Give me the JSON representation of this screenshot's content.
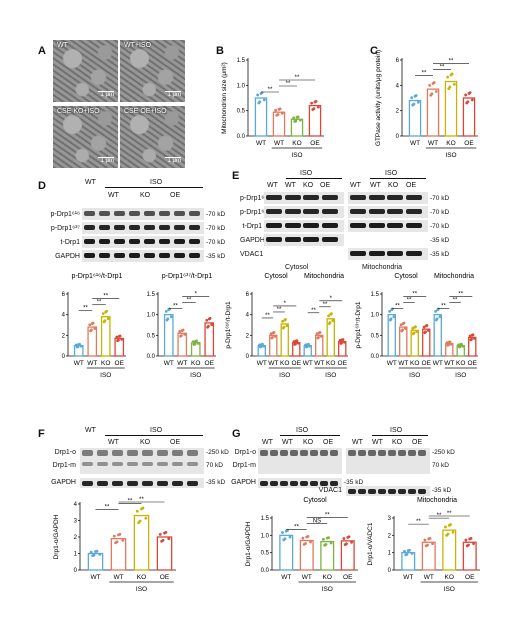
{
  "panel_letters": {
    "A": "A",
    "B": "B",
    "C": "C",
    "D": "D",
    "E": "E",
    "F": "F",
    "G": "G"
  },
  "panel_a": {
    "images": [
      {
        "label": "WT",
        "scale": "1 μm"
      },
      {
        "label": "WT+ISO",
        "scale": "1 μm"
      },
      {
        "label": "CSE KO+ISO",
        "scale": "1 μm"
      },
      {
        "label": "CSE OE+ISO",
        "scale": "1 μm"
      }
    ]
  },
  "common": {
    "wt": "WT",
    "ko": "KO",
    "oe": "OE",
    "iso": "ISO",
    "sig1": "*",
    "sig2": "**",
    "ns": "NS",
    "cytosol": "Cytosol",
    "mitochondria": "Mitochondria"
  },
  "markers": {
    "p_drp1_616": "p-Drp1⁶¹⁶",
    "p_drp1_637": "p-Drp1⁶³⁷",
    "t_drp1": "t-Drp1",
    "gapdh": "GAPDH",
    "vdac1": "VDAC1",
    "drp1_o": "Drp1-o",
    "drp1_m": "Drp1-m",
    "kd70": "-70 kD",
    "kd35": "-35 kD",
    "kd250": "-250 kD",
    "kd70b": "70 kD"
  },
  "chart_data": [
    {
      "id": "B",
      "type": "bar",
      "ylabel": "Mitochondrion size (μm²)",
      "ylim": [
        0,
        1.5
      ],
      "yticks": [
        "0.0",
        "0.5",
        "1.0",
        "1.5"
      ],
      "categories": [
        "WT",
        "WT",
        "KO",
        "OE"
      ],
      "values": [
        0.75,
        0.47,
        0.33,
        0.6
      ],
      "colors": [
        "#5aa9d6",
        "#e07a5f",
        "#7cb342",
        "#d9473a"
      ]
    },
    {
      "id": "C",
      "type": "bar",
      "ylabel": "GTPase activity (units/μg protein)",
      "ylim": [
        0,
        6
      ],
      "yticks": [
        "0",
        "2",
        "4",
        "6"
      ],
      "categories": [
        "WT",
        "WT",
        "KO",
        "OE"
      ],
      "values": [
        2.8,
        3.7,
        4.3,
        3.0
      ],
      "colors": [
        "#5aa9d6",
        "#e07a5f",
        "#c8b400",
        "#d9473a"
      ]
    },
    {
      "id": "D1",
      "type": "bar",
      "title": "p-Drp1⁶¹⁶/t-Drp1",
      "ylim": [
        0,
        6
      ],
      "yticks": [
        "0",
        "2",
        "4",
        "6"
      ],
      "categories": [
        "WT",
        "WT",
        "KO",
        "OE"
      ],
      "values": [
        1.0,
        2.8,
        3.8,
        1.7
      ],
      "colors": [
        "#5aa9d6",
        "#e07a5f",
        "#c8b400",
        "#d9473a"
      ]
    },
    {
      "id": "D2",
      "type": "bar",
      "title": "p-Drp1⁶³⁷/t-Drp1",
      "ylim": [
        0,
        1.5
      ],
      "yticks": [
        "0.0",
        "0.5",
        "1.0",
        "1.5"
      ],
      "categories": [
        "WT",
        "WT",
        "KO",
        "OE"
      ],
      "values": [
        1.0,
        0.55,
        0.32,
        0.8
      ],
      "colors": [
        "#5aa9d6",
        "#e07a5f",
        "#7cb342",
        "#d9473a"
      ]
    },
    {
      "id": "E1",
      "type": "bar",
      "ylabel": "p-Drp1⁶¹⁶/t-Drp1",
      "ylim": [
        0,
        6
      ],
      "yticks": [
        "0",
        "2",
        "4",
        "6"
      ],
      "groups": [
        "Cytosol",
        "Mitochondria"
      ],
      "categories": [
        "WT",
        "WT",
        "KO",
        "OE",
        "WT",
        "WT",
        "KO",
        "OE"
      ],
      "values": [
        1.0,
        2.0,
        3.1,
        1.3,
        1.0,
        2.0,
        3.6,
        1.4
      ],
      "colors": [
        "#5aa9d6",
        "#e07a5f",
        "#c8b400",
        "#d9473a",
        "#5aa9d6",
        "#e07a5f",
        "#c8b400",
        "#d9473a"
      ]
    },
    {
      "id": "E2",
      "type": "bar",
      "ylabel": "p-Drp1⁶³⁷/t-Drp1",
      "ylim": [
        0,
        1.5
      ],
      "yticks": [
        "0.0",
        "0.5",
        "1.0",
        "1.5"
      ],
      "groups": [
        "Cytosol",
        "Mitochondria"
      ],
      "categories": [
        "WT",
        "WT",
        "KO",
        "OE",
        "WT",
        "WT",
        "KO",
        "OE"
      ],
      "values": [
        1.0,
        0.7,
        0.62,
        0.65,
        1.0,
        0.3,
        0.25,
        0.45
      ],
      "colors": [
        "#5aa9d6",
        "#e07a5f",
        "#c8b400",
        "#d9473a",
        "#5aa9d6",
        "#e07a5f",
        "#7cb342",
        "#d9473a"
      ]
    },
    {
      "id": "F",
      "type": "bar",
      "ylabel": "Drp1-o/GAPDH",
      "ylim": [
        0,
        4
      ],
      "yticks": [
        "0",
        "1",
        "2",
        "3",
        "4"
      ],
      "categories": [
        "WT",
        "WT",
        "KO",
        "OE"
      ],
      "values": [
        1.0,
        1.9,
        3.3,
        2.0
      ],
      "colors": [
        "#5aa9d6",
        "#e07a5f",
        "#c8b400",
        "#d9473a"
      ]
    },
    {
      "id": "G1",
      "type": "bar",
      "title": "Cytosol",
      "ylabel": "Drp1-o/GAPDH",
      "ylim": [
        0,
        1.5
      ],
      "yticks": [
        "0.0",
        "0.5",
        "1.0",
        "1.5"
      ],
      "categories": [
        "WT",
        "WT",
        "KO",
        "OE"
      ],
      "values": [
        1.0,
        0.85,
        0.82,
        0.84
      ],
      "colors": [
        "#5aa9d6",
        "#e07a5f",
        "#7cb342",
        "#d9473a"
      ]
    },
    {
      "id": "G2",
      "type": "bar",
      "title": "Mitochondria",
      "ylabel": "Drp1-o/VADC1",
      "ylim": [
        0,
        3
      ],
      "yticks": [
        "0",
        "1",
        "2",
        "3"
      ],
      "categories": [
        "WT",
        "WT",
        "KO",
        "OE"
      ],
      "values": [
        1.0,
        1.6,
        2.3,
        1.6
      ],
      "colors": [
        "#5aa9d6",
        "#e07a5f",
        "#c8b400",
        "#d9473a"
      ]
    }
  ]
}
